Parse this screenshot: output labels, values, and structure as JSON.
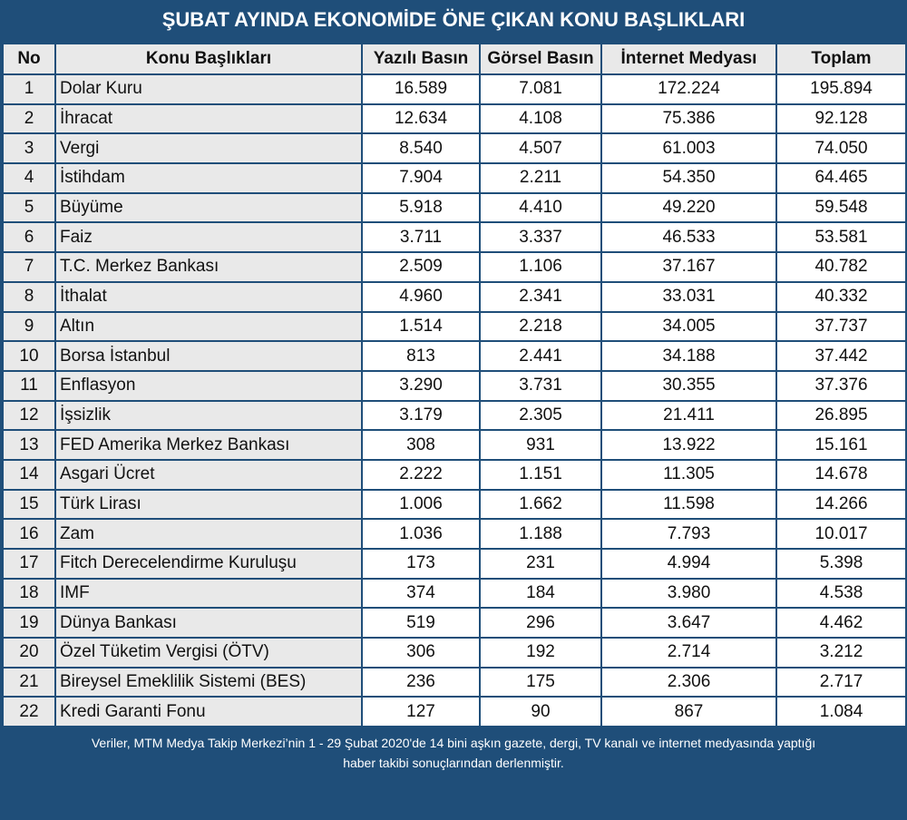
{
  "title": "ŞUBAT AYINDA EKONOMİDE ÖNE ÇIKAN KONU BAŞLIKLARI",
  "columns": [
    "No",
    "Konu Başlıkları",
    "Yazılı Basın",
    "Görsel Basın",
    "İnternet Medyası",
    "Toplam"
  ],
  "rows": [
    [
      "1",
      "Dolar Kuru",
      "16.589",
      "7.081",
      "172.224",
      "195.894"
    ],
    [
      "2",
      "İhracat",
      "12.634",
      "4.108",
      "75.386",
      "92.128"
    ],
    [
      "3",
      "Vergi",
      "8.540",
      "4.507",
      "61.003",
      "74.050"
    ],
    [
      "4",
      "İstihdam",
      "7.904",
      "2.211",
      "54.350",
      "64.465"
    ],
    [
      "5",
      "Büyüme",
      "5.918",
      "4.410",
      "49.220",
      "59.548"
    ],
    [
      "6",
      "Faiz",
      "3.711",
      "3.337",
      "46.533",
      "53.581"
    ],
    [
      "7",
      "T.C. Merkez Bankası",
      "2.509",
      "1.106",
      "37.167",
      "40.782"
    ],
    [
      "8",
      "İthalat",
      "4.960",
      "2.341",
      "33.031",
      "40.332"
    ],
    [
      "9",
      "Altın",
      "1.514",
      "2.218",
      "34.005",
      "37.737"
    ],
    [
      "10",
      "Borsa İstanbul",
      "813",
      "2.441",
      "34.188",
      "37.442"
    ],
    [
      "11",
      "Enflasyon",
      "3.290",
      "3.731",
      "30.355",
      "37.376"
    ],
    [
      "12",
      "İşsizlik",
      "3.179",
      "2.305",
      "21.411",
      "26.895"
    ],
    [
      "13",
      "FED Amerika Merkez Bankası",
      "308",
      "931",
      "13.922",
      "15.161"
    ],
    [
      "14",
      "Asgari Ücret",
      "2.222",
      "1.151",
      "11.305",
      "14.678"
    ],
    [
      "15",
      "Türk Lirası",
      "1.006",
      "1.662",
      "11.598",
      "14.266"
    ],
    [
      "16",
      "Zam",
      "1.036",
      "1.188",
      "7.793",
      "10.017"
    ],
    [
      "17",
      "Fitch Derecelendirme Kuruluşu",
      "173",
      "231",
      "4.994",
      "5.398"
    ],
    [
      "18",
      "IMF",
      "374",
      "184",
      "3.980",
      "4.538"
    ],
    [
      "19",
      "Dünya Bankası",
      "519",
      "296",
      "3.647",
      "4.462"
    ],
    [
      "20",
      "Özel Tüketim Vergisi (ÖTV)",
      "306",
      "192",
      "2.714",
      "3.212"
    ],
    [
      "21",
      "Bireysel Emeklilik Sistemi (BES)",
      "236",
      "175",
      "2.306",
      "2.717"
    ],
    [
      "22",
      "Kredi Garanti Fonu",
      "127",
      "90",
      "867",
      "1.084"
    ]
  ],
  "footer": {
    "line1": "Veriler, MTM Medya Takip Merkezi’nin 1 - 29 Şubat 2020'de 14 bini aşkın gazete, dergi, TV kanalı ve internet medyasında yaptığı",
    "line2": "haber takibi sonuçlarından derlenmiştir."
  },
  "colors": {
    "header_bg": "#1f4e79",
    "label_cell_bg": "#e9e9e9",
    "value_cell_bg": "#ffffff"
  }
}
